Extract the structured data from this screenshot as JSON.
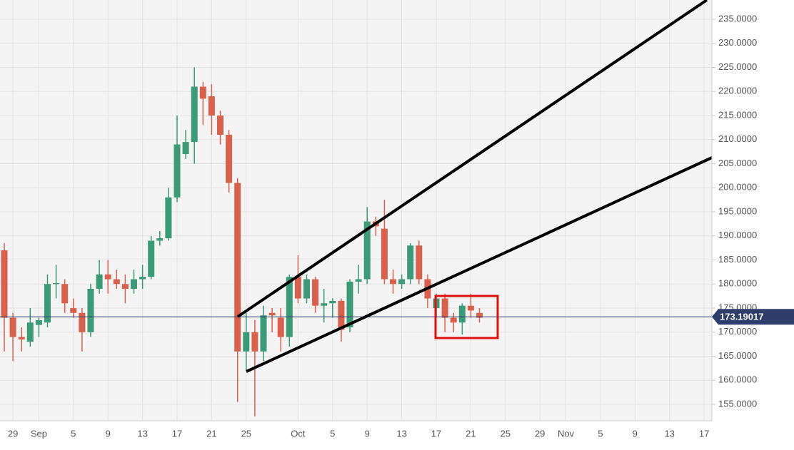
{
  "chart_data": {
    "type": "candlestick",
    "categories": [
      null,
      "29",
      null,
      null,
      "Sep",
      null,
      null,
      null,
      "5",
      null,
      null,
      null,
      "9",
      null,
      null,
      null,
      "13",
      null,
      null,
      null,
      "17",
      null,
      null,
      null,
      "21",
      null,
      null,
      null,
      "25",
      null,
      null,
      null,
      null,
      null,
      "Oct",
      null,
      null,
      null,
      "5",
      null,
      null,
      null,
      "9",
      null,
      null,
      null,
      "13",
      null,
      null,
      null,
      "17",
      null,
      null,
      null,
      "21",
      null,
      null,
      null,
      "25",
      null,
      null,
      null,
      "29",
      null,
      null,
      "Nov",
      null,
      null,
      null,
      "5",
      null,
      null,
      null,
      "9",
      null,
      null,
      null,
      "13",
      null,
      null,
      null,
      "17"
    ],
    "open": [
      187,
      173,
      169,
      168,
      171.5,
      172,
      180,
      180,
      175,
      174,
      170,
      179,
      182,
      181,
      180,
      179,
      181,
      181.5,
      189,
      189.5,
      198,
      207,
      209.5,
      221,
      219,
      215,
      211,
      201,
      166,
      170,
      166,
      174,
      173,
      169,
      181.5,
      177,
      181,
      175.5,
      176,
      176.5,
      171,
      180.5,
      181,
      193,
      191.5,
      181,
      180,
      181,
      188,
      181,
      175,
      177,
      173,
      172,
      175.5,
      174,
      null,
      null,
      null,
      null,
      null,
      null,
      null,
      null,
      null,
      null,
      null,
      null,
      null,
      null,
      null,
      null,
      null,
      null,
      null,
      null,
      null,
      null,
      null,
      null,
      null,
      null
    ],
    "high": [
      188.5,
      174,
      171,
      175,
      173,
      182,
      184,
      181,
      177,
      175,
      180,
      185,
      185,
      183,
      182,
      183,
      184,
      190,
      191,
      200,
      215,
      212,
      225,
      222,
      221.5,
      216,
      212,
      202,
      174,
      172.5,
      175.5,
      175,
      175,
      182,
      186,
      182,
      181.5,
      179,
      177,
      177,
      181,
      184,
      196,
      194,
      197.5,
      183,
      182,
      188.5,
      189,
      182,
      178,
      178,
      174,
      176,
      178,
      175,
      null,
      null,
      null,
      null,
      null,
      null,
      null,
      null,
      null,
      null,
      null,
      null,
      null,
      null,
      null,
      null,
      null,
      null,
      null,
      null,
      null,
      null,
      null,
      null,
      null,
      null
    ],
    "low": [
      166,
      164,
      166,
      167,
      169,
      171,
      177,
      174,
      173,
      166,
      169,
      178,
      178,
      179,
      176,
      178,
      179,
      181,
      188,
      189,
      197,
      206,
      205,
      213,
      211,
      209,
      199,
      155.5,
      162,
      152.5,
      164,
      170,
      166,
      167,
      176,
      176,
      174,
      172,
      173,
      168,
      170,
      178,
      180,
      190,
      180,
      178,
      179,
      180,
      180,
      175,
      173,
      170,
      170,
      169.5,
      173,
      172,
      null,
      null,
      null,
      null,
      null,
      null,
      null,
      null,
      null,
      null,
      null,
      null,
      null,
      null,
      null,
      null,
      null,
      null,
      null,
      null,
      null,
      null,
      null,
      null,
      null,
      null
    ],
    "close": [
      173,
      169,
      168.5,
      172,
      172.5,
      180,
      180.2,
      176,
      174,
      170,
      179,
      182,
      181,
      180,
      179,
      181,
      181.5,
      189,
      189.5,
      198,
      209,
      209.5,
      221,
      218.5,
      215,
      211,
      201,
      166,
      170,
      166,
      173.5,
      173.5,
      169,
      181.5,
      177,
      181,
      175.5,
      176,
      176.5,
      170.5,
      180.5,
      181,
      193,
      192,
      181,
      180,
      181,
      188,
      181,
      177,
      177,
      173,
      172,
      175.5,
      174.5,
      173,
      null,
      null,
      null,
      null,
      null,
      null,
      null,
      null,
      null,
      null,
      null,
      null,
      null,
      null,
      null,
      null,
      null,
      null,
      null,
      null,
      null,
      null,
      null,
      null,
      null,
      null
    ],
    "up_color": "#3b9a77",
    "down_color": "#d9604c",
    "ylim": [
      151.6,
      239
    ],
    "yticks": [
      {
        "value": 155,
        "label": "155.0000"
      },
      {
        "value": 160,
        "label": "160.0000"
      },
      {
        "value": 165,
        "label": "165.0000"
      },
      {
        "value": 170,
        "label": "170.0000"
      },
      {
        "value": 175,
        "label": "175.0000"
      },
      {
        "value": 180,
        "label": "180.0000"
      },
      {
        "value": 185,
        "label": "185.0000"
      },
      {
        "value": 190,
        "label": "190.0000"
      },
      {
        "value": 195,
        "label": "195.0000"
      },
      {
        "value": 200,
        "label": "200.0000"
      },
      {
        "value": 205,
        "label": "205.0000"
      },
      {
        "value": 210,
        "label": "210.0000"
      },
      {
        "value": 215,
        "label": "215.0000"
      },
      {
        "value": 220,
        "label": "220.0000"
      },
      {
        "value": 225,
        "label": "225.0000"
      },
      {
        "value": 230,
        "label": "230.0000"
      },
      {
        "value": 235,
        "label": "235.0000"
      }
    ],
    "grid": true,
    "price_line": 173.19017,
    "price_line_color": "#2f3d6b"
  }
}
